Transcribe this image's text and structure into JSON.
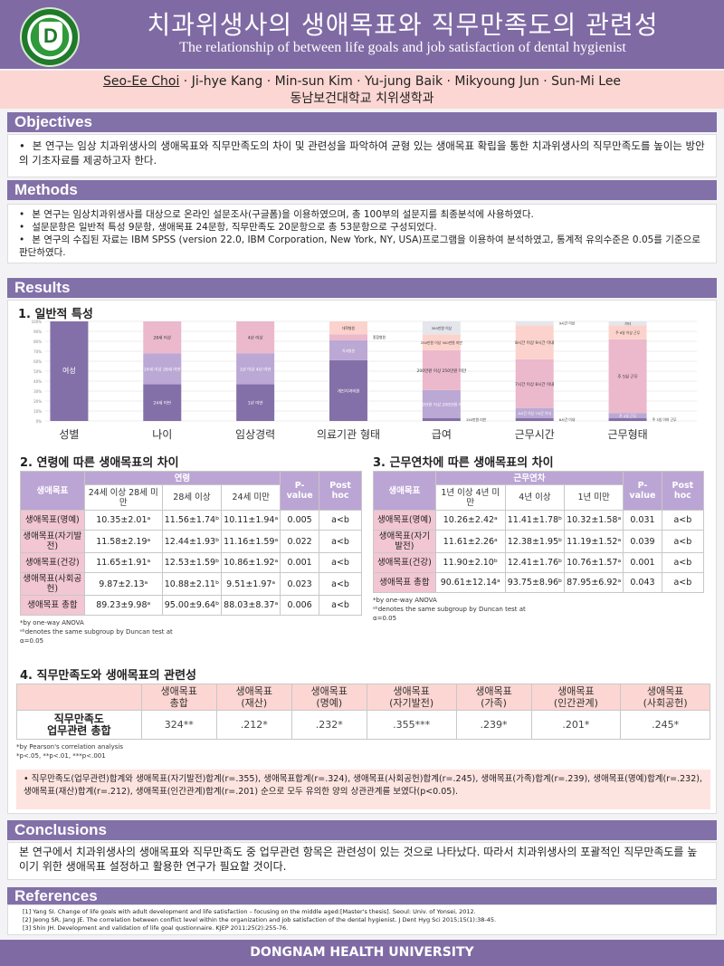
{
  "header": {
    "title": "치과위생사의 생애목표와 직무만족도의 관련성",
    "subtitle": "The relationship of between life goals and job satisfaction of dental hygienist",
    "logo_text": "DONGNAM HEALTH UNIVERSITY 1973 동남보건대학"
  },
  "authors": {
    "first": "Seo-Ee Choi",
    "rest": " · Ji-hye Kang · Min-sun Kim · Yu-jung Baik · Mikyoung Jun · Sun-Mi Lee",
    "affiliation": "동남보건대학교 치위생학과"
  },
  "objectives": {
    "title": "Objectives",
    "items": [
      "본 연구는 임상 치과위생사의 생애목표와 직무만족도의 차이 및 관련성을 파악하여 균형 있는 생애목표 확립을 통한 치과위생사의 직무만족도를 높이는 방안의 기초자료를 제공하고자 한다."
    ]
  },
  "methods": {
    "title": "Methods",
    "items": [
      "본 연구는 임상치과위생사를 대상으로 온라인 설문조사(구글폼)을 이용하였으며, 총 100부의 설문지를 최종분석에 사용하였다.",
      "설문문항은 일반적 특성 9문항, 생애목표 24문항, 직무만족도 20문항으로 총 53문항으로 구성되었다.",
      "본 연구의 수집된 자료는 IBM SPSS (version 22.0, IBM Corporation, New York, NY, USA)프로그램을 이용하여 분석하였고, 통계적 유의수준은 0.05를 기준으로 판단하였다."
    ]
  },
  "results": {
    "title": "Results",
    "s1": "1. 일반적 특성",
    "s2": "2. 연령에 따른 생애목표의 차이",
    "s3": "3. 근무연차에 따른 생애목표의 차이",
    "s4": "4. 직무만족도와 생애목표의 관련성"
  },
  "chart_data": {
    "type": "bar",
    "stacked": true,
    "title": "일반적 특성",
    "ylim": [
      0,
      100
    ],
    "yticks": [
      "0%",
      "10%",
      "20%",
      "30%",
      "40%",
      "50%",
      "60%",
      "70%",
      "80%",
      "90%",
      "100%"
    ],
    "categories": [
      {
        "name": "성별",
        "segments": [
          {
            "label": "여성",
            "value": 100
          }
        ]
      },
      {
        "name": "나이",
        "segments": [
          {
            "label": "24세 미만",
            "value": 37
          },
          {
            "label": "24세 이상 28세 미만",
            "value": 31
          },
          {
            "label": "28세 이상",
            "value": 32
          }
        ]
      },
      {
        "name": "임상경력",
        "segments": [
          {
            "label": "1년 미만",
            "value": 37
          },
          {
            "label": "1년 이상 4년 미만",
            "value": 31
          },
          {
            "label": "4년 이상",
            "value": 32
          }
        ]
      },
      {
        "name": "의료기관 형태",
        "segments": [
          {
            "label": "개인치과의원",
            "value": 61
          },
          {
            "label": "치과병원",
            "value": 20
          },
          {
            "label": "종합병원",
            "value": 6,
            "outside": true
          },
          {
            "label": "대학병원",
            "value": 13
          }
        ]
      },
      {
        "name": "급여",
        "segments": [
          {
            "label": "150만원 미만",
            "value": 3,
            "outside": true
          },
          {
            "label": "150만원 이상 200만원 미만",
            "value": 28
          },
          {
            "label": "200만원 이상 250만원 미만",
            "value": 40
          },
          {
            "label": "250만원 이상 300만원 미만",
            "value": 16
          },
          {
            "label": "300만원 이상",
            "value": 13
          }
        ]
      },
      {
        "name": "근무시간",
        "segments": [
          {
            "label": "6시간 이내",
            "value": 3,
            "outside": true
          },
          {
            "label": "6시간 이상 7시간 이내",
            "value": 10
          },
          {
            "label": "7시간 이상 8시간 이내",
            "value": 49
          },
          {
            "label": "8시간 이상 9시간 이내",
            "value": 34
          },
          {
            "label": "9시간 이상",
            "value": 4,
            "outside": true
          }
        ]
      },
      {
        "name": "근무형태",
        "segments": [
          {
            "label": "주 3일 이하 근무",
            "value": 3,
            "outside": true
          },
          {
            "label": "주 4일 근무",
            "value": 5
          },
          {
            "label": "주 5일 근무",
            "value": 74
          },
          {
            "label": "주 6일 이상 근무",
            "value": 14
          },
          {
            "label": "기타",
            "value": 4
          }
        ]
      }
    ],
    "colors": [
      "#8470a8",
      "#bba8d4",
      "#ebb8cc",
      "#fcd3cc",
      "#e4e6ec"
    ]
  },
  "table_age": {
    "header": "생애목표",
    "group": "연령",
    "cols": [
      "24세 이상 28세 미만",
      "28세 이상",
      "24세 미만"
    ],
    "p": "P-value",
    "post": "Post hoc",
    "rows": [
      [
        "생애목표(명예)",
        "10.35±2.01ᵃ",
        "11.56±1.74ᵇ",
        "10.11±1.94ᵃ",
        "0.005",
        "a<b"
      ],
      [
        "생애목표(자기발전)",
        "11.58±2.19ᵃ",
        "12.44±1.93ᵇ",
        "11.16±1.59ᵃ",
        "0.022",
        "a<b"
      ],
      [
        "생애목표(건강)",
        "11.65±1.91ᵃ",
        "12.53±1.59ᵇ",
        "10.86±1.92ᵃ",
        "0.001",
        "a<b"
      ],
      [
        "생애목표(사회공헌)",
        "9.87±2.13ᵃ",
        "10.88±2.11ᵇ",
        "9.51±1.97ᵃ",
        "0.023",
        "a<b"
      ],
      [
        "생애목표 총합",
        "89.23±9.98ᵃ",
        "95.00±9.64ᵇ",
        "88.03±8.37ᵃ",
        "0.006",
        "a<b"
      ]
    ],
    "notes": [
      "*by one-way ANOVA",
      "ᵃᵇdenotes the same subgroup by Duncan test at",
      "α=0.05"
    ]
  },
  "table_career": {
    "header": "생애목표",
    "group": "근무연차",
    "cols": [
      "1년 이상 4년 미만",
      "4년 이상",
      "1년 미만"
    ],
    "p": "P-value",
    "post": "Post hoc",
    "rows": [
      [
        "생애목표(명예)",
        "10.26±2.42ᵃ",
        "11.41±1.78ᵇ",
        "10.32±1.58ᵃ",
        "0.031",
        "a<b"
      ],
      [
        "생애목표(자기발전)",
        "11.61±2.26ᵃ",
        "12.38±1.95ᵇ",
        "11.19±1.52ᵃ",
        "0.039",
        "a<b"
      ],
      [
        "생애목표(건강)",
        "11.90±2.10ᵇ",
        "12.41±1.76ᵇ",
        "10.76±1.57ᵃ",
        "0.001",
        "a<b"
      ],
      [
        "생애목표 총합",
        "90.61±12.14ᵃ",
        "93.75±8.96ᵇ",
        "87.95±6.92ᵃ",
        "0.043",
        "a<b"
      ]
    ],
    "notes": [
      "*by one-way ANOVA",
      "ᵃᵇdenotes the same subgroup by Duncan test at",
      "α=0.05"
    ]
  },
  "table_corr": {
    "cols": [
      "생애목표\n총합",
      "생애목표\n(재산)",
      "생애목표\n(명예)",
      "생애목표\n(자기발전)",
      "생애목표\n(가족)",
      "생애목표\n(인간관계)",
      "생애목표\n(사회공헌)"
    ],
    "row_label": "직무만족도\n업무관련 총합",
    "values": [
      "324**",
      ".212*",
      ".232*",
      ".355***",
      ".239*",
      ".201*",
      ".245*"
    ],
    "notes": [
      "*by Pearson's correlation analysis",
      "*p<.05, **p<.01, ***p<.001"
    ],
    "summary": "직무만족도(업무관련)합계와 생애목표(자기발전)합계(r=.355), 생애목표합계(r=.324), 생애목표(사회공헌)합계(r=.245), 생애목표(가족)합계(r=.239), 생애목표(명예)합계(r=.232), 생애목표(재산)합계(r=.212), 생애목표(인간관계)합계(r=.201) 순으로 모두 유의한 양의 상관관계를 보였다(p<0.05)."
  },
  "conclusions": {
    "title": "Conclusions",
    "text": "본 연구에서 치과위생사의 생애목표와 직무만족도 중 업무관련 항목은 관련성이 있는 것으로 나타났다. 따라서 치과위생사의 포괄적인 직무만족도를 높이기 위한 생애목표 설정하고 활용한 연구가 필요할 것이다."
  },
  "references": {
    "title": "References",
    "items": [
      "[1] Yang SI. Change of life goals with adult development and life satisfaction – focusing on the middle aged:[Master's thesis]. Seoul: Univ. of Yonsei, 2012.",
      "[2] Jeong SR, Jang JE. The correlation between conflict level within the organization and job satisfaction of the dental hygienist. J Dent Hyg Sci 2015;15(1):38-45.",
      "[3] Shin JH. Development and validation of life goal qustionnaire. KJEP 2011;25(2):255-76."
    ]
  },
  "footer": "DONGNAM HEALTH UNIVERSITY"
}
